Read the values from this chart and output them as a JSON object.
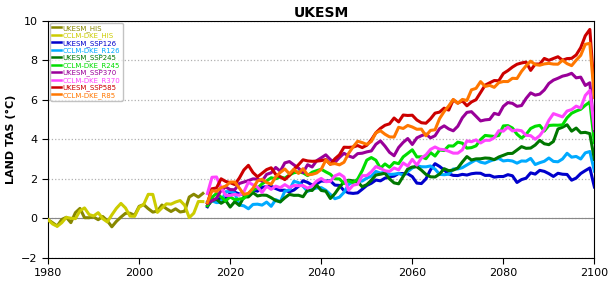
{
  "title": "UKESM",
  "ylabel": "LAND TAS (°C)",
  "xlim": [
    1980,
    2100
  ],
  "ylim": [
    -2,
    10
  ],
  "yticks": [
    -2,
    0,
    2,
    4,
    6,
    8,
    10
  ],
  "xticks": [
    1980,
    2000,
    2020,
    2040,
    2060,
    2080,
    2100
  ],
  "grid_color": "#b0b0b0",
  "legend": [
    {
      "label": "UKESM_HIS",
      "color": "#888800",
      "lw": 2.2
    },
    {
      "label": "CCLM-DKE_HIS",
      "color": "#cccc00",
      "lw": 2.2
    },
    {
      "label": "UKESM_SSP126",
      "color": "#0000cc",
      "lw": 2.2
    },
    {
      "label": "CCLM-DKE_R126",
      "color": "#00aaff",
      "lw": 2.2
    },
    {
      "label": "UKESM_SSP245",
      "color": "#007700",
      "lw": 2.2
    },
    {
      "label": "CCLM-DKE_R245",
      "color": "#00dd00",
      "lw": 2.2
    },
    {
      "label": "UKESM_SSP370",
      "color": "#990099",
      "lw": 2.2
    },
    {
      "label": "CCLM-DKE_R370",
      "color": "#ff44ff",
      "lw": 2.2
    },
    {
      "label": "UKESM_SSP585",
      "color": "#cc0000",
      "lw": 2.2
    },
    {
      "label": "CCLM-DKE_R85",
      "color": "#ff7700",
      "lw": 2.2
    }
  ],
  "seed": 42,
  "hist_start": 1980,
  "hist_end": 2014,
  "proj_start": 2015,
  "proj_end": 2100
}
